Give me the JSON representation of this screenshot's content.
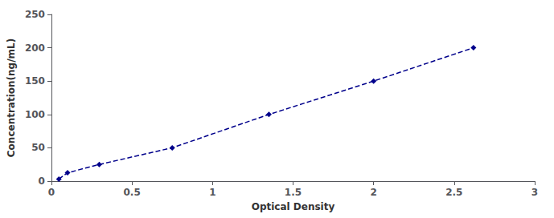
{
  "chart_data": {
    "type": "line",
    "xlabel": "Optical Density",
    "ylabel": "Concentration(ng/mL)",
    "x": [
      0.046,
      0.1,
      0.297,
      0.75,
      1.35,
      2.0,
      2.62
    ],
    "values": [
      3.12,
      12.5,
      25.0,
      50.0,
      100.0,
      150.0,
      200.0
    ],
    "color": "#00008B",
    "marker": "diamond",
    "line_style": "dashed",
    "xlim": [
      0,
      3
    ],
    "ylim": [
      0,
      250
    ],
    "xticks": [
      0,
      0.5,
      1,
      1.5,
      2,
      2.5,
      3
    ],
    "yticks": [
      0,
      50,
      100,
      150,
      200,
      250
    ],
    "grid": false
  }
}
